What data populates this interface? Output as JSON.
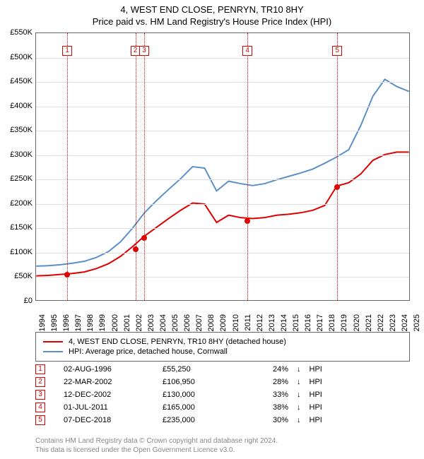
{
  "title": "4, WEST END CLOSE, PENRYN, TR10 8HY",
  "subtitle": "Price paid vs. HM Land Registry's House Price Index (HPI)",
  "chart": {
    "type": "line",
    "background_color": "#ffffff",
    "grid_color": "#e0e0e0",
    "border_color": "#666666",
    "xlim": [
      1994,
      2025
    ],
    "ylim": [
      0,
      550000
    ],
    "ytick_step": 50000,
    "yticks": [
      "£0",
      "£50K",
      "£100K",
      "£150K",
      "£200K",
      "£250K",
      "£300K",
      "£350K",
      "£400K",
      "£450K",
      "£500K",
      "£550K"
    ],
    "xticks": [
      "1994",
      "1995",
      "1996",
      "1997",
      "1998",
      "1999",
      "2000",
      "2001",
      "2002",
      "2003",
      "2004",
      "2005",
      "2006",
      "2007",
      "2008",
      "2009",
      "2010",
      "2011",
      "2012",
      "2013",
      "2014",
      "2015",
      "2016",
      "2017",
      "2018",
      "2019",
      "2020",
      "2021",
      "2022",
      "2023",
      "2024",
      "2025"
    ],
    "label_fontsize": 11,
    "line_width": 2,
    "series": [
      {
        "name": "property",
        "label": "4, WEST END CLOSE, PENRYN, TR10 8HY (detached house)",
        "color": "#e00000",
        "years": [
          1994,
          1995,
          1996,
          1997,
          1998,
          1999,
          2000,
          2001,
          2002,
          2003,
          2004,
          2005,
          2006,
          2007,
          2008,
          2009,
          2010,
          2011,
          2012,
          2013,
          2014,
          2015,
          2016,
          2017,
          2018,
          2019,
          2020,
          2021,
          2022,
          2023,
          2024,
          2025
        ],
        "values": [
          50,
          51,
          53,
          55,
          58,
          65,
          75,
          90,
          110,
          132,
          150,
          168,
          185,
          200,
          198,
          160,
          175,
          170,
          168,
          170,
          175,
          177,
          180,
          185,
          195,
          235,
          242,
          260,
          288,
          300,
          305,
          305
        ]
      },
      {
        "name": "hpi",
        "label": "HPI: Average price, detached house, Cornwall",
        "color": "#5b8fc7",
        "years": [
          1994,
          1995,
          1996,
          1997,
          1998,
          1999,
          2000,
          2001,
          2002,
          2003,
          2004,
          2005,
          2006,
          2007,
          2008,
          2009,
          2010,
          2011,
          2012,
          2013,
          2014,
          2015,
          2016,
          2017,
          2018,
          2019,
          2020,
          2021,
          2022,
          2023,
          2024,
          2025
        ],
        "values": [
          70,
          71,
          73,
          76,
          80,
          88,
          100,
          120,
          148,
          180,
          205,
          228,
          250,
          275,
          272,
          225,
          245,
          240,
          236,
          240,
          248,
          255,
          262,
          270,
          282,
          295,
          310,
          360,
          420,
          455,
          440,
          430
        ]
      }
    ],
    "transactions": [
      {
        "num": "1",
        "year": 1996.58,
        "value": 55.25,
        "date": "02-AUG-1996",
        "price": "£55,250",
        "pct": "24%",
        "dir": "↓"
      },
      {
        "num": "2",
        "year": 2002.22,
        "value": 106.95,
        "date": "22-MAR-2002",
        "price": "£106,950",
        "pct": "28%",
        "dir": "↓"
      },
      {
        "num": "3",
        "year": 2002.95,
        "value": 130.0,
        "date": "12-DEC-2002",
        "price": "£130,000",
        "pct": "33%",
        "dir": "↓"
      },
      {
        "num": "4",
        "year": 2011.5,
        "value": 165.0,
        "date": "01-JUL-2011",
        "price": "£165,000",
        "pct": "38%",
        "dir": "↓"
      },
      {
        "num": "5",
        "year": 2018.93,
        "value": 235.0,
        "date": "07-DEC-2018",
        "price": "£235,000",
        "pct": "30%",
        "dir": "↓"
      }
    ],
    "hpi_suffix": "HPI",
    "marker_top_offset": 18
  },
  "footer": {
    "line1": "Contains HM Land Registry data © Crown copyright and database right 2024.",
    "line2": "This data is licensed under the Open Government Licence v3.0."
  }
}
